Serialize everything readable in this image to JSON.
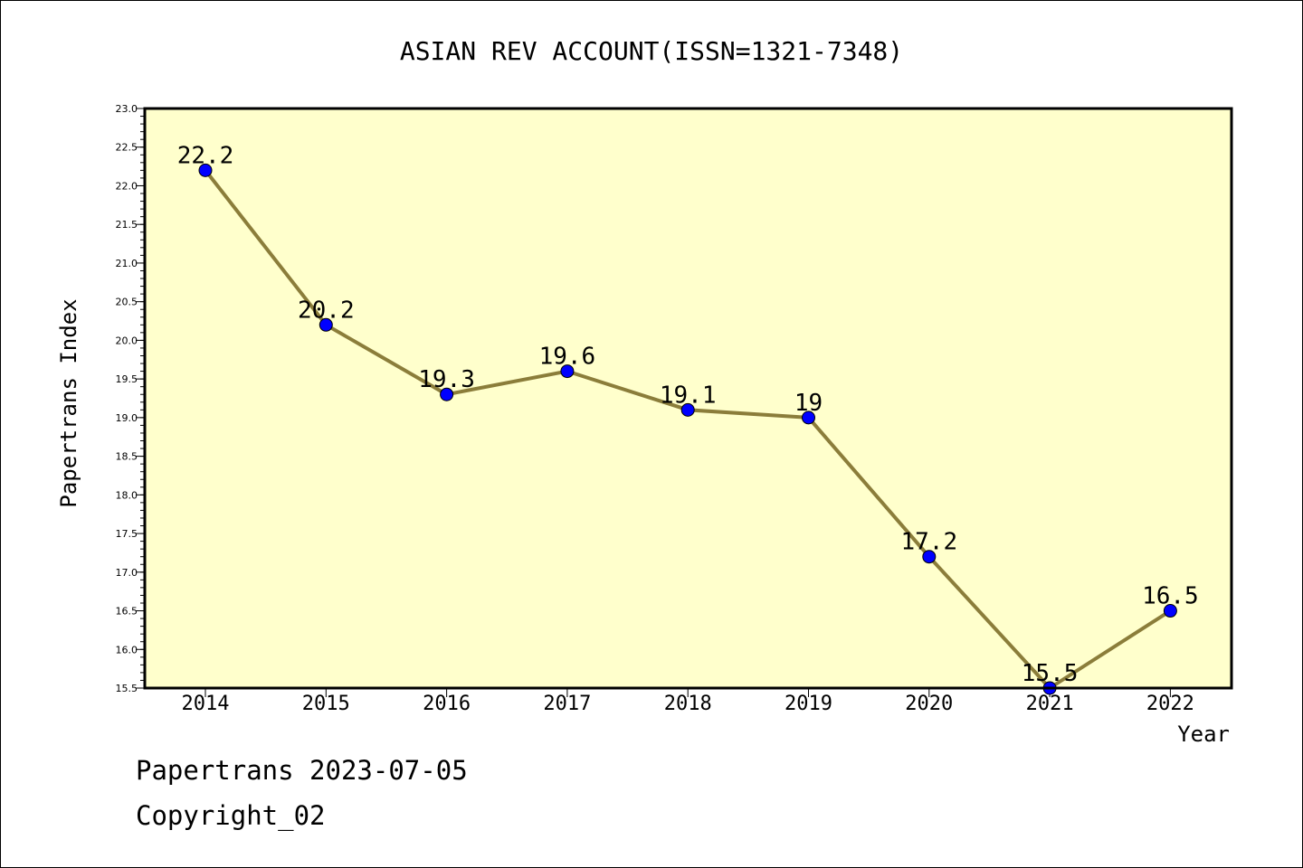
{
  "chart_data": {
    "type": "line",
    "title": "ASIAN REV ACCOUNT(ISSN=1321-7348)",
    "xlabel": "Year",
    "ylabel": "Papertrans Index",
    "categories": [
      "2014",
      "2015",
      "2016",
      "2017",
      "2018",
      "2019",
      "2020",
      "2021",
      "2022"
    ],
    "values": [
      22.2,
      20.2,
      19.3,
      19.6,
      19.1,
      19,
      17.2,
      15.5,
      16.5
    ],
    "data_labels": [
      "22.2",
      "20.2",
      "19.3",
      "19.6",
      "19.1",
      "19",
      "17.2",
      "15.5",
      "16.5"
    ],
    "ylim": [
      15.5,
      23.0
    ],
    "yticks": [
      "15.5",
      "16.0",
      "16.5",
      "17.0",
      "17.5",
      "18.0",
      "18.5",
      "19.0",
      "19.5",
      "20.0",
      "20.5",
      "21.0",
      "21.5",
      "22.0",
      "22.5",
      "23.0"
    ],
    "grid": false,
    "colors": {
      "plot_background": "#FFFFCC",
      "line": "#8B7D3A",
      "marker": "#0000FF"
    }
  },
  "footer": {
    "line1": "Papertrans 2023-07-05",
    "line2": "Copyright_02"
  }
}
